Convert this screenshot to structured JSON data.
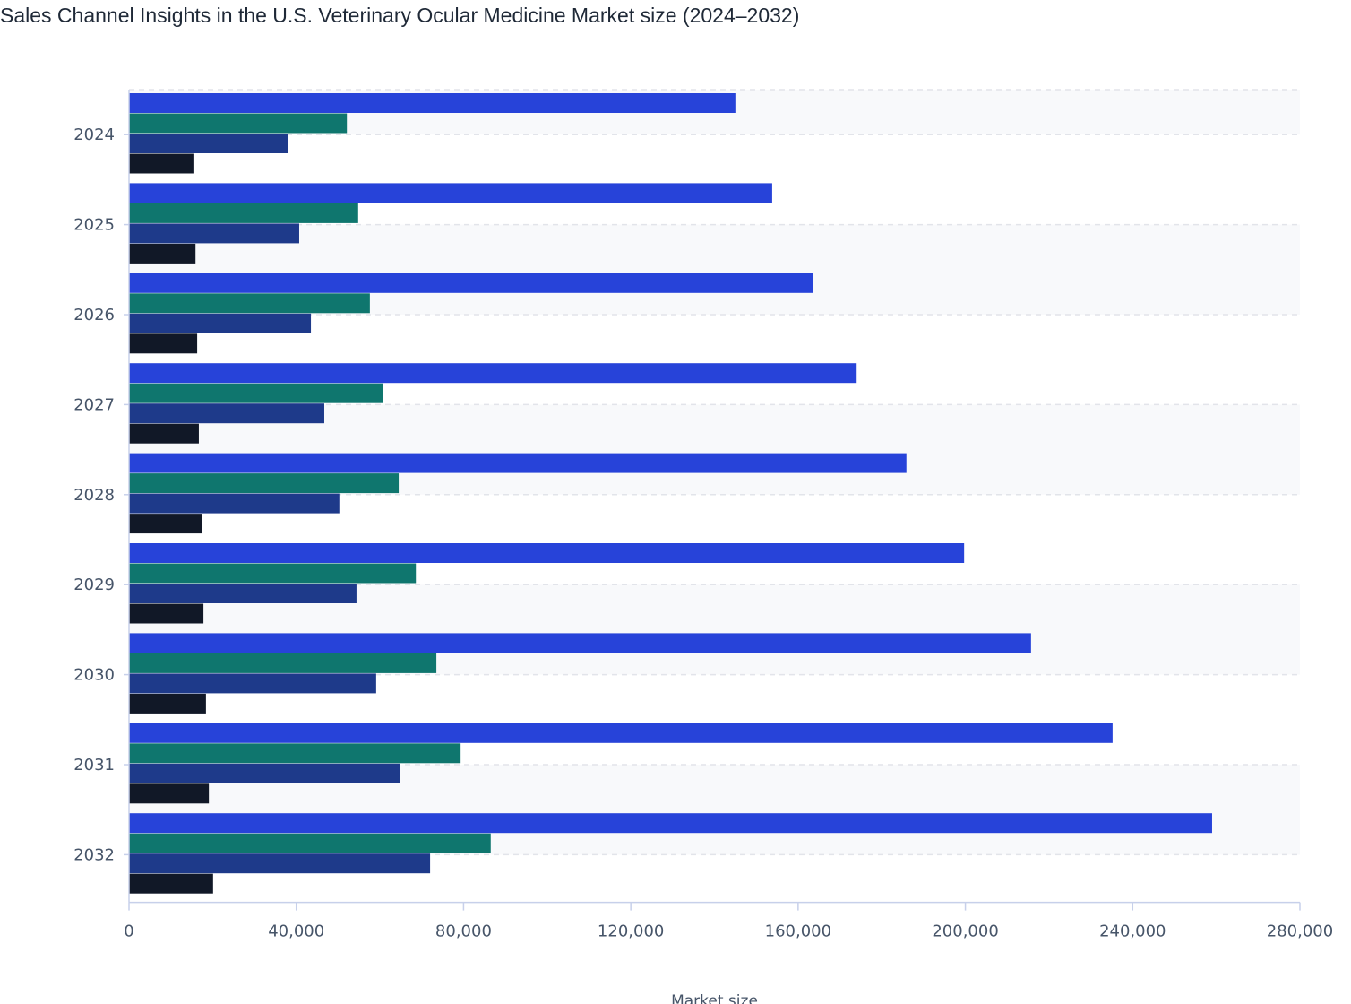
{
  "chart_data": {
    "type": "bar",
    "orientation": "horizontal",
    "title": "Sales Channel Insights in the U.S. Veterinary Ocular Medicine Market size (2024–2032)",
    "xlabel": "Market size",
    "ylabel": "",
    "xlim": [
      0,
      280000
    ],
    "xticks": [
      0,
      40000,
      80000,
      120000,
      160000,
      200000,
      240000,
      280000
    ],
    "xtick_labels": [
      "0",
      "40,000",
      "80,000",
      "120,000",
      "160,000",
      "200,000",
      "240,000",
      "280,000"
    ],
    "categories": [
      "2024",
      "2025",
      "2026",
      "2027",
      "2028",
      "2029",
      "2030",
      "2031",
      "2032"
    ],
    "grid": "dashed horizontal",
    "legend": "none",
    "series": [
      {
        "color": "#2743d9",
        "values": [
          145000,
          153800,
          163500,
          174000,
          185900,
          199700,
          215700,
          235200,
          259000
        ]
      },
      {
        "color": "#0f766e",
        "values": [
          52100,
          54800,
          57600,
          60800,
          64500,
          68600,
          73500,
          79300,
          86500
        ]
      },
      {
        "color": "#1e3a8a",
        "values": [
          38100,
          40700,
          43500,
          46700,
          50300,
          54400,
          59100,
          64900,
          72000
        ]
      },
      {
        "color": "#111827",
        "values": [
          15400,
          15900,
          16300,
          16700,
          17400,
          17800,
          18400,
          19100,
          20100
        ]
      }
    ]
  }
}
